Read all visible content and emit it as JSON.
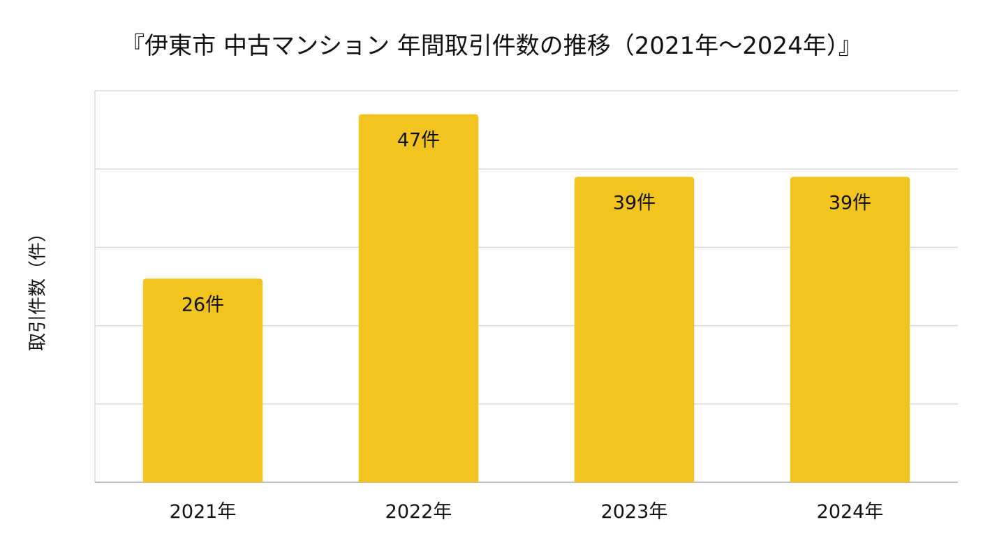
{
  "chart_data": {
    "type": "bar",
    "title": "『伊東市 中古マンション 年間取引件数の推移（2021年〜2024年）』",
    "xlabel": "",
    "ylabel": "取引件数（件）",
    "categories": [
      "2021年",
      "2022年",
      "2023年",
      "2024年"
    ],
    "values": [
      26,
      47,
      39,
      39
    ],
    "data_labels": [
      "26件",
      "47件",
      "39件",
      "39件"
    ],
    "ylim": [
      0,
      50
    ],
    "y_tick_labels_visible": false,
    "grid": true,
    "legend": "none",
    "colors": {
      "bar": "#F2C41F",
      "grid": "#D9D9D9",
      "axis": "#BDBDBD",
      "text": "#111111"
    }
  }
}
